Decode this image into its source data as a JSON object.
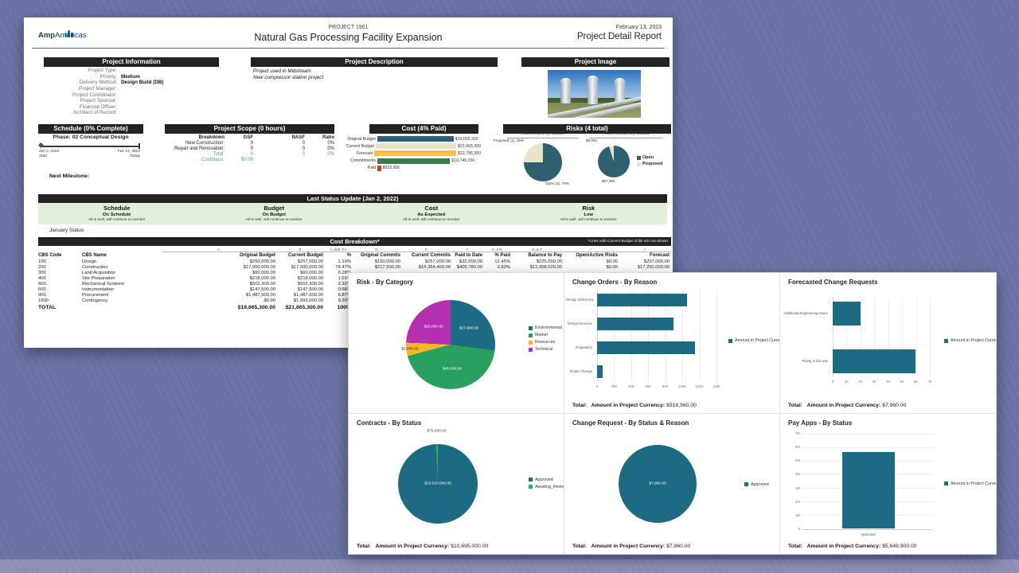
{
  "desktop": {
    "background_color": "#6b73a6"
  },
  "page1": {
    "logo": {
      "brand": "Amp",
      "brand2": "Americas"
    },
    "header": {
      "project_code": "PROJECT 1961",
      "project_title": "Natural Gas Processing Facility Expansion",
      "date": "February 13, 2023",
      "report_title": "Project Detail Report"
    },
    "info": {
      "heading": "Project Information",
      "fields": [
        {
          "label": "Project Type:",
          "value": ""
        },
        {
          "label": "Priority:",
          "value": "Medium"
        },
        {
          "label": "Delivery Method:",
          "value": "Design Build (DB)"
        },
        {
          "label": "Project Manager:",
          "value": ""
        },
        {
          "label": "Project Coordinator:",
          "value": ""
        },
        {
          "label": "Project Sponsor:",
          "value": ""
        },
        {
          "label": "Financial Officer:",
          "value": ""
        },
        {
          "label": "Architect of Record:",
          "value": ""
        }
      ]
    },
    "description": {
      "heading": "Project Description",
      "line1": "Project used in Midstream",
      "line2": "New compressor station project"
    },
    "image": {
      "heading": "Project Image"
    },
    "schedule": {
      "heading": "Schedule (0% Complete)",
      "phase": "Phase: 02 Conceptual Design",
      "start_date": "Jan 2, 2022",
      "start_label": "Start",
      "end_date": "Feb 13, 2023",
      "end_label": "Today",
      "next_milestone": "Next Milestone:"
    },
    "scope": {
      "heading": "Project Scope (0 hours)",
      "columns": [
        "Breakdown",
        "GSF",
        "NASF",
        "Ratio"
      ],
      "rows": [
        {
          "label": "New Construction:",
          "gsf": "0",
          "nasf": "0",
          "ratio": "0%",
          "green": false
        },
        {
          "label": "Repair and Renovation:",
          "gsf": "0",
          "nasf": "0",
          "ratio": "0%",
          "green": false
        },
        {
          "label": "Total:",
          "gsf": "0",
          "nasf": "0",
          "ratio": "0%",
          "green": true
        },
        {
          "label": "Costhours:",
          "gsf": "$0.00",
          "nasf": "",
          "ratio": "",
          "green": true
        }
      ]
    },
    "risks": {
      "heading": "Risks (4 total)"
    },
    "status_update": {
      "heading": "Last Status Update (Jan 2, 2022)",
      "columns": [
        {
          "title": "Schedule",
          "status": "On Schedule",
          "note": "All is well, will continue to monitor"
        },
        {
          "title": "Budget",
          "status": "On Budget",
          "note": "All is well, will continue to monitor"
        },
        {
          "title": "Cost",
          "status": "As Expected",
          "note": "All is well, will continue to monitor"
        },
        {
          "title": "Risk",
          "status": "Low",
          "note": "All is well, will continue to monitor"
        }
      ],
      "footnote": "January Status"
    },
    "breakdown": {
      "heading": "Cost Breakdown*",
      "note": "*Lines with Current Budget of $0 are not shown",
      "letters": [
        "",
        "",
        "A",
        "B",
        "C=B/B Tot",
        "D",
        "E",
        "F",
        "G=F/E",
        "H=E-F",
        "I",
        "J"
      ],
      "columns": [
        "CBS Code",
        "CBS Name",
        "Original Budget",
        "Current Budget",
        "%",
        "Original Commits",
        "Current Commits",
        "Paid to Date",
        "% Paid",
        "Balance to Pay",
        "Open/Active Risks",
        "Forecast"
      ],
      "rows": [
        [
          "100",
          "Design",
          "$250,000.00",
          "$257,000.00",
          "1.19%",
          "$160,000.00",
          "$257,000.00",
          "$32,000.00",
          "12.45%",
          "$225,000.00",
          "$0.00",
          "$257,000.00"
        ],
        [
          "200",
          "Construction",
          "$17,000,000.00",
          "$17,000,000.00",
          "78.47%",
          "$217,500.00",
          "$14,364,400.00",
          "$405,780.00",
          "2.83%",
          "$13,958,620.00",
          "$0.00",
          "$17,250,000.00"
        ],
        [
          "300",
          "Land Acquisition",
          "$60,000.00",
          "$60,000.00",
          "0.28%",
          "",
          "",
          "",
          "",
          "",
          "",
          ""
        ],
        [
          "400",
          "Site Preparation",
          "$218,000.00",
          "$218,000.00",
          "1.01%",
          "",
          "",
          "",
          "",
          "",
          "",
          ""
        ],
        [
          "500",
          "Mechanical Systems",
          "$502,300.00",
          "$502,300.00",
          "2.32%",
          "",
          "",
          "",
          "",
          "",
          "",
          ""
        ],
        [
          "600",
          "Instrumentation",
          "$147,500.00",
          "$147,500.00",
          "0.68%",
          "",
          "",
          "",
          "",
          "",
          "",
          ""
        ],
        [
          "900",
          "Procurement",
          "$1,487,500.00",
          "$1,487,500.00",
          "6.87%",
          "",
          "",
          "",
          "",
          "",
          "",
          ""
        ],
        [
          "1000",
          "Contingency",
          "$0.00",
          "$1,993,000.00",
          "9.20%",
          "",
          "",
          "",
          "",
          "",
          "",
          ""
        ]
      ],
      "total_row": [
        "TOTAL",
        "",
        "$19,665,300.00",
        "$21,665,300.00",
        "100%",
        "",
        "",
        "",
        "",
        "",
        "",
        ""
      ]
    }
  },
  "chart_data": [
    {
      "id": "cost_overview",
      "type": "bar",
      "orientation": "horizontal",
      "title": "Cost (4% Paid)",
      "categories": [
        "Original Budget",
        "Current Budget",
        "Forecast",
        "Commitments",
        "Paid"
      ],
      "values": [
        19665300,
        21665300,
        22795300,
        18749150,
        933956
      ],
      "value_labels": [
        "$19,665,300",
        "$21,665,300",
        "$22,795,300",
        "$18,749,150",
        "$933,956"
      ],
      "colors": [
        "#2e5f7a",
        "#e9e3c9",
        "#f6c340",
        "#3c7b4b",
        "#b5491f"
      ],
      "xlim": [
        0,
        22795300
      ]
    },
    {
      "id": "risk_count_by_status",
      "type": "pie",
      "title": "Risk Count by Status",
      "slices": [
        {
          "name": "Open",
          "value": 3,
          "label": "Open (3), 75%",
          "color": "#2e6070"
        },
        {
          "name": "Proposed",
          "value": 1,
          "label": "Proposed (1), 25%",
          "color": "#e9e3c9"
        }
      ],
      "legend": [
        {
          "label": "Open",
          "color": "#2e6070"
        },
        {
          "label": "Proposed",
          "color": "#e9e3c9"
        }
      ]
    },
    {
      "id": "risk_amount_by_status",
      "type": "pie",
      "title": "Risk Amount by Status",
      "slices": [
        {
          "name": "Open",
          "value": 97900,
          "label": "$97,900",
          "color": "#2e6070"
        },
        {
          "name": "Proposed",
          "value": 5000,
          "label": "$5,000",
          "color": "#e9e3c9"
        }
      ]
    },
    {
      "id": "risk_by_category",
      "type": "pie",
      "title": "Risk - By Category",
      "slices": [
        {
          "name": "Environmental",
          "value": 27900,
          "label": "$27,900.00",
          "color": "#1d6b82"
        },
        {
          "name": "Market",
          "value": 45000,
          "label": "$45,000.00",
          "color": "#2aa05f"
        },
        {
          "name": "Resources",
          "value": 5000,
          "label": "$5,000.00",
          "color": "#f2b724"
        },
        {
          "name": "Technical",
          "value": 25000,
          "label": "$25,000.00",
          "color": "#b62fb0"
        }
      ],
      "legend": [
        {
          "label": "Environmental",
          "color": "#1d6b82"
        },
        {
          "label": "Market",
          "color": "#2aa05f"
        },
        {
          "label": "Resources",
          "color": "#f2b724"
        },
        {
          "label": "Technical",
          "color": "#b62fb0"
        }
      ]
    },
    {
      "id": "change_orders_by_reason",
      "type": "bar",
      "orientation": "horizontal",
      "title": "Change Orders - By Reason",
      "categories": [
        "Design Deficiency",
        "Design Directive",
        "Regulatory",
        "Scope Change"
      ],
      "values": [
        105000,
        90000,
        115000,
        6560
      ],
      "xlim": [
        0,
        140000
      ],
      "tick_labels": [
        "0",
        "20K",
        "40K",
        "60K",
        "80K",
        "100K",
        "120K",
        "140K"
      ],
      "bar_color": "#1d6b82",
      "legend": [
        {
          "label": "Amount in Project Currency",
          "color": "#1d6b82"
        }
      ],
      "total_label": "Total:",
      "total_series": "Amount in Project Currency:",
      "total_value": "$316,560.00"
    },
    {
      "id": "forecasted_change_requests",
      "type": "bar",
      "orientation": "horizontal",
      "title": "Forecasted Change Requests",
      "categories": [
        "Additional Engineering Hours",
        "Piping in the way"
      ],
      "values": [
        2000,
        5960
      ],
      "xlim": [
        0,
        7000
      ],
      "tick_labels": [
        "0",
        "1K",
        "2K",
        "3K",
        "4K",
        "5K",
        "6K",
        "7K"
      ],
      "bar_color": "#1d6b82",
      "legend": [
        {
          "label": "Amount in Project Currency",
          "color": "#1d6b82"
        }
      ],
      "total_label": "Total:",
      "total_series": "Amount in Project Currency:",
      "total_value": "$7,960.00"
    },
    {
      "id": "contracts_by_status",
      "type": "pie",
      "title": "Contracts - By Status",
      "slices": [
        {
          "name": "Approved",
          "value": 10620000,
          "label": "$10,620,000.00",
          "color": "#1d6b82"
        },
        {
          "name": "Awaiting_Review",
          "value": 75000,
          "label": "$75,000.00",
          "color": "#2fae57"
        }
      ],
      "legend": [
        {
          "label": "Approved",
          "color": "#1d6b82"
        },
        {
          "label": "Awaiting_Review",
          "color": "#2fae57"
        }
      ],
      "total_label": "Total:",
      "total_series": "Amount in Project Currency:",
      "total_value": "$10,695,000.00"
    },
    {
      "id": "change_request_by_status_reason",
      "type": "pie",
      "title": "Change Request - By Status & Reason",
      "slices": [
        {
          "name": "Approved",
          "value": 7960,
          "label": "$7,960.00",
          "color": "#1d6b82"
        }
      ],
      "legend": [
        {
          "label": "Approved",
          "color": "#1d6b82"
        }
      ],
      "total_label": "Total:",
      "total_series": "Amount in Project Currency:",
      "total_value": "$7,960.00"
    },
    {
      "id": "pay_apps_by_status",
      "type": "bar",
      "orientation": "vertical",
      "title": "Pay Apps - By Status",
      "categories": [
        "Approved"
      ],
      "values": [
        5648900
      ],
      "ylim": [
        0,
        7000000
      ],
      "tick_labels": [
        "0",
        "1M",
        "2M",
        "3M",
        "4M",
        "5M",
        "6M",
        "7M"
      ],
      "bar_color": "#1d6b82",
      "legend": [
        {
          "label": "Amount in Project Currency",
          "color": "#1d6b82"
        }
      ],
      "total_label": "Total:",
      "total_series": "Amount in Project Currency:",
      "total_value": "$5,648,900.00"
    }
  ],
  "page2_order": [
    "risk_by_category",
    "change_orders_by_reason",
    "forecasted_change_requests",
    "contracts_by_status",
    "change_request_by_status_reason",
    "pay_apps_by_status"
  ]
}
